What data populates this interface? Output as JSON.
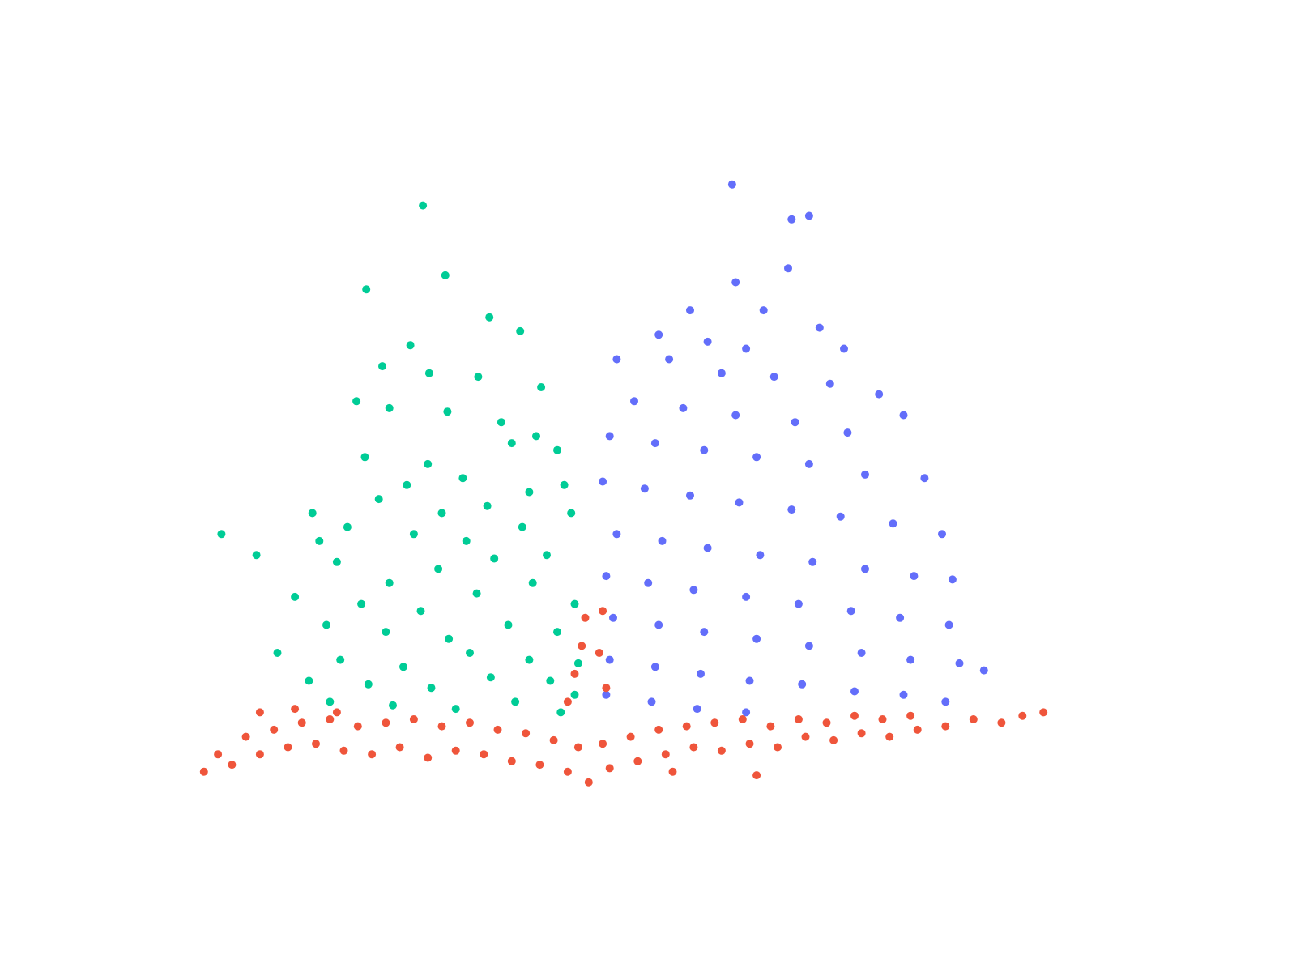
{
  "chart_data": {
    "type": "scatter",
    "title": "",
    "xlabel": "",
    "ylabel": "",
    "grid": false,
    "axes_visible": false,
    "legend": "none",
    "xlim": [
      -6.2,
      7.0
    ],
    "ylim": [
      0,
      9.5
    ],
    "colors": {
      "down": "#00cc96",
      "up": "#636efa",
      "ns": "#ef553b"
    },
    "series": [
      {
        "key": "down",
        "points": [
          [
            -2.47,
            8.3
          ],
          [
            -2.15,
            7.3
          ],
          [
            -3.28,
            7.1
          ],
          [
            -1.52,
            6.7
          ],
          [
            -1.08,
            6.5
          ],
          [
            -2.65,
            6.3
          ],
          [
            -3.05,
            6.0
          ],
          [
            -2.38,
            5.9
          ],
          [
            -1.68,
            5.85
          ],
          [
            -0.78,
            5.7
          ],
          [
            -3.42,
            5.5
          ],
          [
            -2.95,
            5.4
          ],
          [
            -2.12,
            5.35
          ],
          [
            -1.35,
            5.2
          ],
          [
            -0.85,
            5.0
          ],
          [
            -5.35,
            3.6
          ],
          [
            -4.05,
            3.9
          ],
          [
            -4.85,
            3.3
          ],
          [
            -3.95,
            3.5
          ],
          [
            -3.55,
            3.7
          ],
          [
            -2.4,
            4.6
          ],
          [
            -3.3,
            4.7
          ],
          [
            -1.9,
            4.4
          ],
          [
            -2.7,
            4.3
          ],
          [
            -1.2,
            4.9
          ],
          [
            -0.55,
            4.8
          ],
          [
            -0.45,
            4.3
          ],
          [
            -0.95,
            4.2
          ],
          [
            -1.55,
            4.0
          ],
          [
            -2.2,
            3.9
          ],
          [
            -3.1,
            4.1
          ],
          [
            -2.6,
            3.6
          ],
          [
            -1.85,
            3.5
          ],
          [
            -1.05,
            3.7
          ],
          [
            -0.35,
            3.9
          ],
          [
            -3.7,
            3.2
          ],
          [
            -2.95,
            2.9
          ],
          [
            -2.25,
            3.1
          ],
          [
            -1.45,
            3.25
          ],
          [
            -0.7,
            3.3
          ],
          [
            -4.3,
            2.7
          ],
          [
            -3.35,
            2.6
          ],
          [
            -2.5,
            2.5
          ],
          [
            -1.7,
            2.75
          ],
          [
            -0.9,
            2.9
          ],
          [
            -0.3,
            2.6
          ],
          [
            -3.85,
            2.3
          ],
          [
            -3.0,
            2.2
          ],
          [
            -2.1,
            2.1
          ],
          [
            -1.25,
            2.3
          ],
          [
            -0.55,
            2.2
          ],
          [
            -4.55,
            1.9
          ],
          [
            -3.65,
            1.8
          ],
          [
            -2.75,
            1.7
          ],
          [
            -1.8,
            1.9
          ],
          [
            -0.95,
            1.8
          ],
          [
            -0.25,
            1.75
          ],
          [
            -4.1,
            1.5
          ],
          [
            -3.25,
            1.45
          ],
          [
            -2.35,
            1.4
          ],
          [
            -1.5,
            1.55
          ],
          [
            -0.65,
            1.5
          ],
          [
            -0.3,
            1.3
          ],
          [
            -3.8,
            1.2
          ],
          [
            -2.9,
            1.15
          ],
          [
            -2.0,
            1.1
          ],
          [
            -1.15,
            1.2
          ],
          [
            -0.5,
            1.05
          ]
        ]
      },
      {
        "key": "up",
        "points": [
          [
            1.95,
            8.6
          ],
          [
            2.8,
            8.1
          ],
          [
            3.05,
            8.15
          ],
          [
            2.75,
            7.4
          ],
          [
            2.0,
            7.2
          ],
          [
            1.35,
            6.8
          ],
          [
            2.4,
            6.8
          ],
          [
            3.2,
            6.55
          ],
          [
            0.9,
            6.45
          ],
          [
            1.6,
            6.35
          ],
          [
            2.15,
            6.25
          ],
          [
            3.55,
            6.25
          ],
          [
            0.3,
            6.1
          ],
          [
            1.05,
            6.1
          ],
          [
            1.8,
            5.9
          ],
          [
            2.55,
            5.85
          ],
          [
            3.35,
            5.75
          ],
          [
            4.05,
            5.6
          ],
          [
            4.4,
            5.3
          ],
          [
            0.55,
            5.5
          ],
          [
            1.25,
            5.4
          ],
          [
            2.0,
            5.3
          ],
          [
            2.85,
            5.2
          ],
          [
            3.6,
            5.05
          ],
          [
            0.2,
            5.0
          ],
          [
            0.85,
            4.9
          ],
          [
            1.55,
            4.8
          ],
          [
            2.3,
            4.7
          ],
          [
            3.05,
            4.6
          ],
          [
            3.85,
            4.45
          ],
          [
            4.7,
            4.4
          ],
          [
            0.1,
            4.35
          ],
          [
            0.7,
            4.25
          ],
          [
            1.35,
            4.15
          ],
          [
            2.05,
            4.05
          ],
          [
            2.8,
            3.95
          ],
          [
            3.5,
            3.85
          ],
          [
            4.25,
            3.75
          ],
          [
            4.95,
            3.6
          ],
          [
            0.3,
            3.6
          ],
          [
            0.95,
            3.5
          ],
          [
            1.6,
            3.4
          ],
          [
            2.35,
            3.3
          ],
          [
            3.1,
            3.2
          ],
          [
            3.85,
            3.1
          ],
          [
            4.55,
            3.0
          ],
          [
            5.1,
            2.95
          ],
          [
            0.15,
            3.0
          ],
          [
            0.75,
            2.9
          ],
          [
            1.4,
            2.8
          ],
          [
            2.15,
            2.7
          ],
          [
            2.9,
            2.6
          ],
          [
            3.65,
            2.5
          ],
          [
            4.35,
            2.4
          ],
          [
            5.05,
            2.3
          ],
          [
            0.25,
            2.4
          ],
          [
            0.9,
            2.3
          ],
          [
            1.55,
            2.2
          ],
          [
            2.3,
            2.1
          ],
          [
            3.05,
            2.0
          ],
          [
            3.8,
            1.9
          ],
          [
            4.5,
            1.8
          ],
          [
            5.2,
            1.75
          ],
          [
            5.55,
            1.65
          ],
          [
            0.2,
            1.8
          ],
          [
            0.85,
            1.7
          ],
          [
            1.5,
            1.6
          ],
          [
            2.2,
            1.5
          ],
          [
            2.95,
            1.45
          ],
          [
            3.7,
            1.35
          ],
          [
            4.4,
            1.3
          ],
          [
            5.0,
            1.2
          ],
          [
            0.15,
            1.3
          ],
          [
            0.8,
            1.2
          ],
          [
            1.45,
            1.1
          ],
          [
            2.15,
            1.05
          ]
        ]
      },
      {
        "key": "ns",
        "points": [
          [
            -5.2,
            0.3
          ],
          [
            -4.8,
            0.45
          ],
          [
            -4.4,
            0.55
          ],
          [
            -4.0,
            0.6
          ],
          [
            -3.6,
            0.5
          ],
          [
            -3.2,
            0.45
          ],
          [
            -2.8,
            0.55
          ],
          [
            -2.4,
            0.4
          ],
          [
            -2.0,
            0.5
          ],
          [
            -1.6,
            0.45
          ],
          [
            -1.2,
            0.35
          ],
          [
            -0.8,
            0.3
          ],
          [
            -0.4,
            0.2
          ],
          [
            -0.1,
            0.05
          ],
          [
            0.2,
            0.25
          ],
          [
            0.6,
            0.35
          ],
          [
            1.0,
            0.45
          ],
          [
            1.4,
            0.55
          ],
          [
            1.8,
            0.5
          ],
          [
            2.2,
            0.6
          ],
          [
            2.6,
            0.55
          ],
          [
            3.0,
            0.7
          ],
          [
            3.4,
            0.65
          ],
          [
            3.8,
            0.75
          ],
          [
            4.2,
            0.7
          ],
          [
            4.6,
            0.8
          ],
          [
            5.0,
            0.85
          ],
          [
            5.4,
            0.95
          ],
          [
            5.8,
            0.9
          ],
          [
            6.1,
            1.0
          ],
          [
            -5.0,
            0.7
          ],
          [
            -4.6,
            0.8
          ],
          [
            -4.2,
            0.9
          ],
          [
            -3.8,
            0.95
          ],
          [
            -3.4,
            0.85
          ],
          [
            -3.0,
            0.9
          ],
          [
            -2.6,
            0.95
          ],
          [
            -2.2,
            0.85
          ],
          [
            -1.8,
            0.9
          ],
          [
            -1.4,
            0.8
          ],
          [
            -1.0,
            0.75
          ],
          [
            -0.6,
            0.65
          ],
          [
            -0.25,
            0.55
          ],
          [
            0.1,
            0.6
          ],
          [
            0.5,
            0.7
          ],
          [
            0.9,
            0.8
          ],
          [
            1.3,
            0.85
          ],
          [
            1.7,
            0.9
          ],
          [
            2.1,
            0.95
          ],
          [
            2.5,
            0.85
          ],
          [
            2.9,
            0.95
          ],
          [
            3.3,
            0.9
          ],
          [
            3.7,
            1.0
          ],
          [
            4.1,
            0.95
          ],
          [
            4.5,
            1.0
          ],
          [
            -4.8,
            1.05
          ],
          [
            -4.3,
            1.1
          ],
          [
            -3.7,
            1.05
          ],
          [
            -0.4,
            1.2
          ],
          [
            -0.3,
            1.6
          ],
          [
            -0.2,
            2.0
          ],
          [
            -0.15,
            2.4
          ],
          [
            0.05,
            1.9
          ],
          [
            0.1,
            2.5
          ],
          [
            0.15,
            1.4
          ],
          [
            -5.6,
            0.2
          ],
          [
            -5.4,
            0.45
          ],
          [
            6.4,
            1.05
          ],
          [
            2.3,
            0.15
          ],
          [
            1.1,
            0.2
          ]
        ]
      }
    ]
  }
}
